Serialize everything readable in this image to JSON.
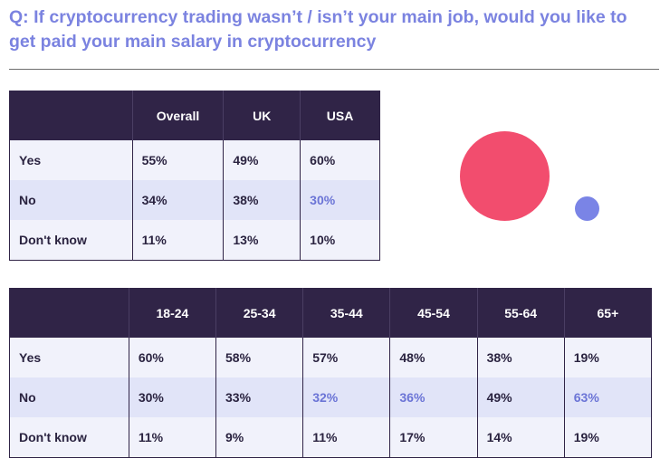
{
  "question": "Q: If cryptocurrency trading wasn’t / isn’t your main job, would you like to get paid your main salary in cryptocurrency",
  "colors": {
    "question": "#7b83e0",
    "header_bg": "#302447",
    "row_light": "#f1f2fb",
    "row_dark": "#e1e4f8",
    "highlight_text": "#6b74d6",
    "bubble_large": "#f24d6e",
    "bubble_small": "#7a84e6"
  },
  "region_table": {
    "headers": [
      "",
      "Overall",
      "UK",
      "USA"
    ],
    "rows": [
      {
        "label": "Yes",
        "values": [
          "55%",
          "49%",
          "60%"
        ]
      },
      {
        "label": "No",
        "values": [
          "34%",
          "38%",
          "30%"
        ]
      },
      {
        "label": "Don't know",
        "values": [
          "11%",
          "13%",
          "10%"
        ]
      }
    ]
  },
  "age_table": {
    "headers": [
      "",
      "18-24",
      "25-34",
      "35-44",
      "45-54",
      "55-64",
      "65+"
    ],
    "rows": [
      {
        "label": "Yes",
        "values": [
          "60%",
          "58%",
          "57%",
          "48%",
          "38%",
          "19%"
        ]
      },
      {
        "label": "No",
        "values": [
          "30%",
          "33%",
          "32%",
          "36%",
          "49%",
          "63%"
        ]
      },
      {
        "label": "Don't know",
        "values": [
          "11%",
          "9%",
          "11%",
          "17%",
          "14%",
          "19%"
        ]
      }
    ]
  }
}
